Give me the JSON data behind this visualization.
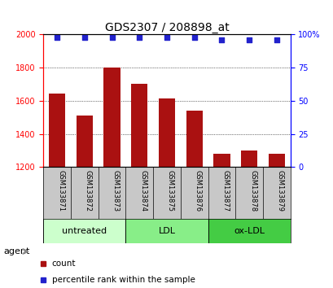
{
  "title": "GDS2307 / 208898_at",
  "samples": [
    "GSM133871",
    "GSM133872",
    "GSM133873",
    "GSM133874",
    "GSM133875",
    "GSM133876",
    "GSM133877",
    "GSM133878",
    "GSM133879"
  ],
  "counts": [
    1645,
    1510,
    1800,
    1705,
    1615,
    1540,
    1280,
    1300,
    1280
  ],
  "percentiles": [
    98,
    98,
    98,
    98,
    98,
    98,
    96,
    96,
    96
  ],
  "ylim_left": [
    1200,
    2000
  ],
  "ylim_right": [
    0,
    100
  ],
  "yticks_left": [
    1200,
    1400,
    1600,
    1800,
    2000
  ],
  "yticks_right": [
    0,
    25,
    50,
    75,
    100
  ],
  "bar_color": "#aa1111",
  "dot_color": "#2222cc",
  "bar_width": 0.6,
  "groups": [
    {
      "label": "untreated",
      "indices": [
        0,
        1,
        2
      ],
      "color": "#ccffcc"
    },
    {
      "label": "LDL",
      "indices": [
        3,
        4,
        5
      ],
      "color": "#88ee88"
    },
    {
      "label": "ox-LDL",
      "indices": [
        6,
        7,
        8
      ],
      "color": "#44cc44"
    }
  ],
  "agent_label": "agent",
  "legend_count_label": "count",
  "legend_pct_label": "percentile rank within the sample",
  "background_sample_row": "#c8c8c8"
}
